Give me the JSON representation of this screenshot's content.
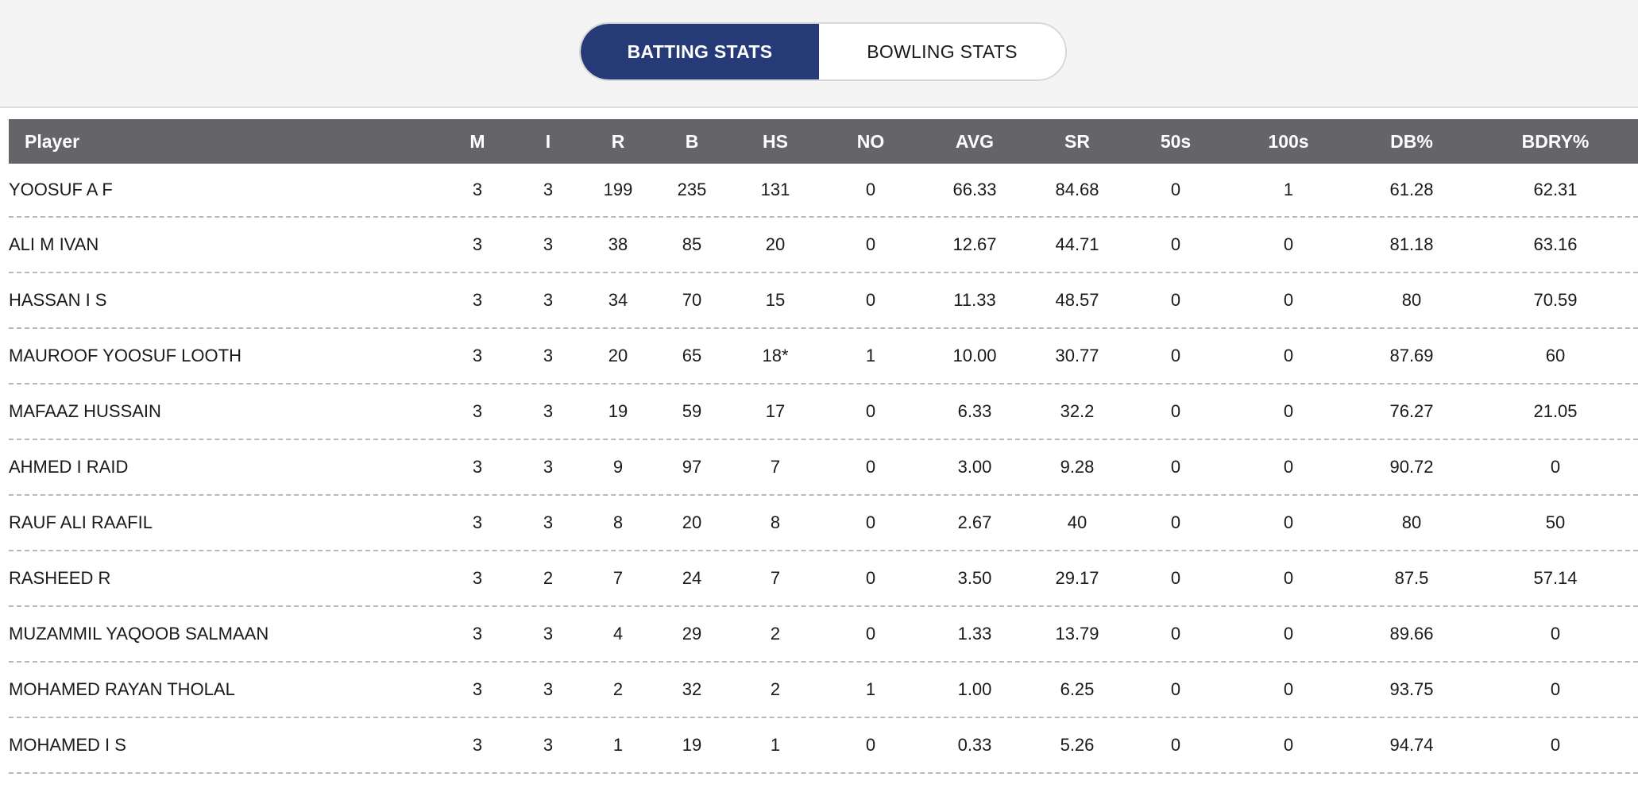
{
  "tabs": {
    "batting_label": "BATTING STATS",
    "bowling_label": "BOWLING STATS"
  },
  "colors": {
    "active_tab": "#263a78",
    "table_header": "#646469"
  },
  "table": {
    "columns": [
      "Player",
      "M",
      "I",
      "R",
      "B",
      "HS",
      "NO",
      "AVG",
      "SR",
      "50s",
      "100s",
      "DB%",
      "BDRY%"
    ],
    "rows": [
      [
        "YOOSUF A F",
        "3",
        "3",
        "199",
        "235",
        "131",
        "0",
        "66.33",
        "84.68",
        "0",
        "1",
        "61.28",
        "62.31"
      ],
      [
        "ALI M IVAN",
        "3",
        "3",
        "38",
        "85",
        "20",
        "0",
        "12.67",
        "44.71",
        "0",
        "0",
        "81.18",
        "63.16"
      ],
      [
        "HASSAN I S",
        "3",
        "3",
        "34",
        "70",
        "15",
        "0",
        "11.33",
        "48.57",
        "0",
        "0",
        "80",
        "70.59"
      ],
      [
        "MAUROOF YOOSUF LOOTH",
        "3",
        "3",
        "20",
        "65",
        "18*",
        "1",
        "10.00",
        "30.77",
        "0",
        "0",
        "87.69",
        "60"
      ],
      [
        "MAFAAZ HUSSAIN",
        "3",
        "3",
        "19",
        "59",
        "17",
        "0",
        "6.33",
        "32.2",
        "0",
        "0",
        "76.27",
        "21.05"
      ],
      [
        "AHMED I RAID",
        "3",
        "3",
        "9",
        "97",
        "7",
        "0",
        "3.00",
        "9.28",
        "0",
        "0",
        "90.72",
        "0"
      ],
      [
        "RAUF ALI RAAFIL",
        "3",
        "3",
        "8",
        "20",
        "8",
        "0",
        "2.67",
        "40",
        "0",
        "0",
        "80",
        "50"
      ],
      [
        "RASHEED R",
        "3",
        "2",
        "7",
        "24",
        "7",
        "0",
        "3.50",
        "29.17",
        "0",
        "0",
        "87.5",
        "57.14"
      ],
      [
        "MUZAMMIL YAQOOB SALMAAN",
        "3",
        "3",
        "4",
        "29",
        "2",
        "0",
        "1.33",
        "13.79",
        "0",
        "0",
        "89.66",
        "0"
      ],
      [
        "MOHAMED RAYAN THOLAL",
        "3",
        "3",
        "2",
        "32",
        "2",
        "1",
        "1.00",
        "6.25",
        "0",
        "0",
        "93.75",
        "0"
      ],
      [
        "MOHAMED I S",
        "3",
        "3",
        "1",
        "19",
        "1",
        "0",
        "0.33",
        "5.26",
        "0",
        "0",
        "94.74",
        "0"
      ]
    ]
  }
}
